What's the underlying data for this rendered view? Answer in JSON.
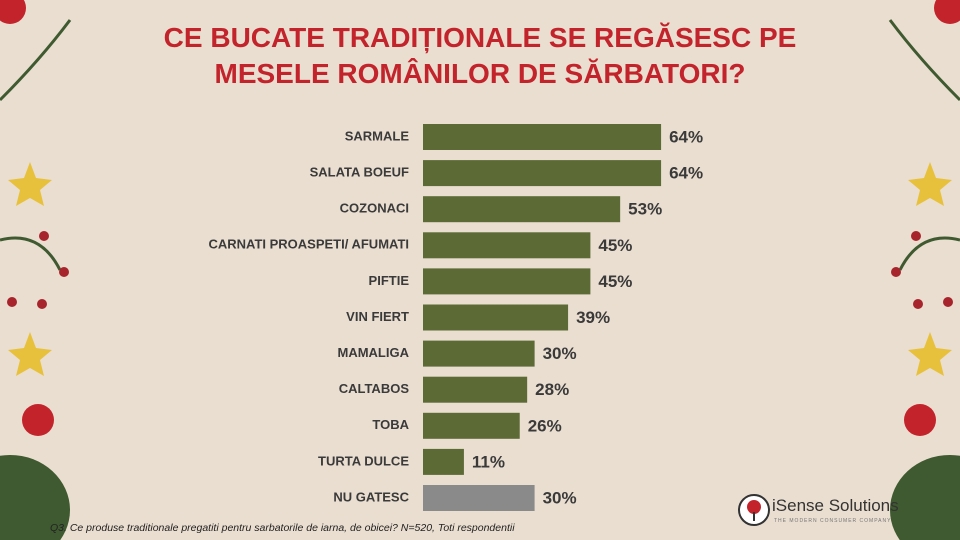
{
  "chart_data": {
    "type": "bar",
    "orientation": "horizontal",
    "title": "CE BUCATE TRADIȚIONALE SE REGĂSESC PE MESELE ROMÂNILOR DE SĂRBATORI?",
    "categories": [
      "SARMALE",
      "SALATA BOEUF",
      "COZONACI",
      "CARNATI PROASPETI/ AFUMATI",
      "PIFTIE",
      "VIN FIERT",
      "MAMALIGA",
      "CALTABOS",
      "TOBA",
      "TURTA DULCE",
      "NU GATESC"
    ],
    "values": [
      64,
      64,
      53,
      45,
      45,
      39,
      30,
      28,
      26,
      11,
      30
    ],
    "value_labels": [
      "64%",
      "64%",
      "53%",
      "45%",
      "45%",
      "39%",
      "30%",
      "28%",
      "26%",
      "11%",
      "30%"
    ],
    "colors": [
      "#5c6a35",
      "#5c6a35",
      "#5c6a35",
      "#5c6a35",
      "#5c6a35",
      "#5c6a35",
      "#5c6a35",
      "#5c6a35",
      "#5c6a35",
      "#5c6a35",
      "#8a8a8a"
    ],
    "footnote": "Q3. Ce produse traditionale pregatiti pentru sarbatorile de iarna, de obicei? N=520, Toti respondentii"
  },
  "logo": {
    "name": "iSense Solutions",
    "tagline": "THE MODERN CONSUMER COMPANY"
  }
}
